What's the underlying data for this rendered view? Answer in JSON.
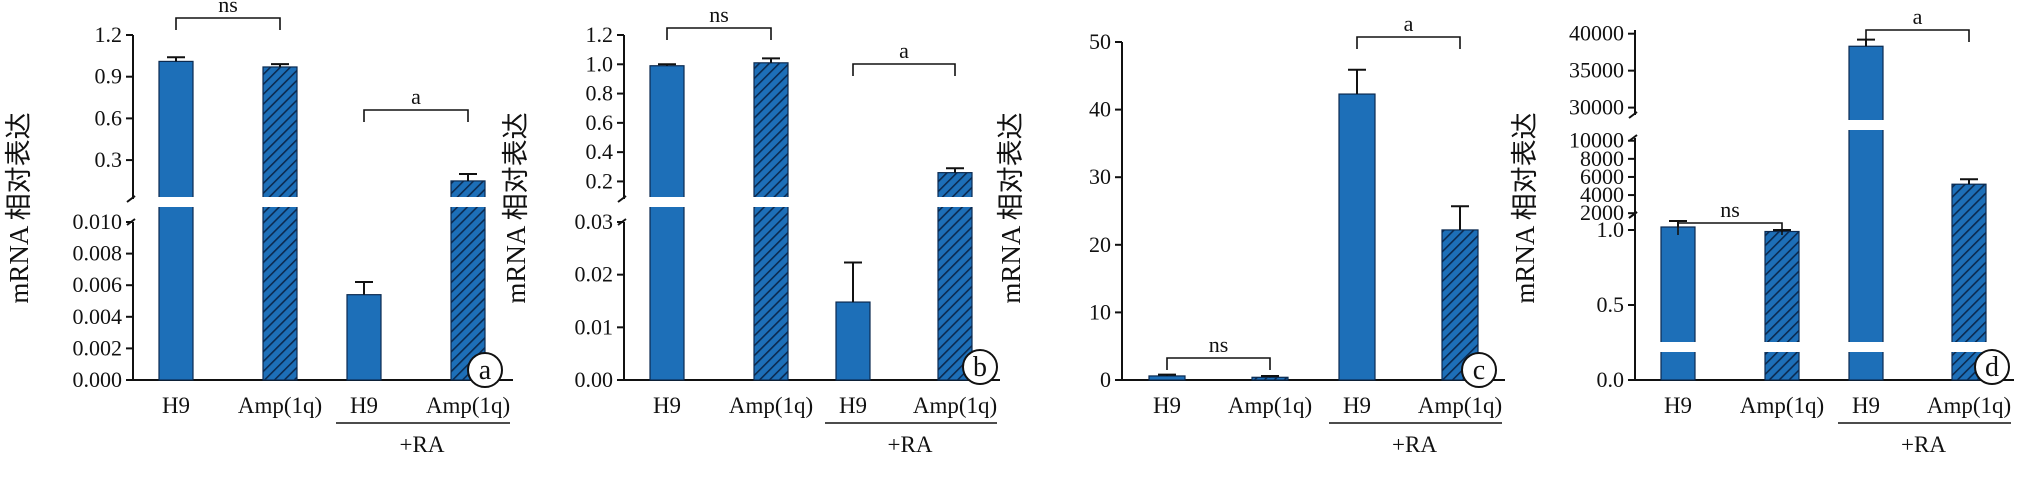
{
  "colors": {
    "bar": "#1d6fb8",
    "axis": "#111111",
    "background": "#ffffff"
  },
  "x_labels": {
    "untreated": [
      "H9",
      "Amp(1q)"
    ],
    "treated": [
      "H9",
      "Amp(1q)"
    ],
    "group": "+RA"
  },
  "y_label": "mRNA 相对表达",
  "chart_data": [
    {
      "type": "bar",
      "panel_label": "a",
      "title": "",
      "xlabel": "",
      "ylabel": "mRNA 相对表达",
      "categories": [
        "H9",
        "Amp(1q)",
        "H9",
        "Amp(1q)"
      ],
      "category_group": [
        "",
        "",
        "+RA",
        "+RA"
      ],
      "bar_hatched": [
        false,
        true,
        false,
        true
      ],
      "values": [
        1.01,
        0.97,
        0.0054,
        0.15
      ],
      "errors": [
        0.03,
        0.02,
        0.0008,
        0.05
      ],
      "broken_axis": true,
      "y_segments": [
        {
          "ylim": [
            0,
            0.01
          ],
          "ticks": [
            "0.000",
            "0.002",
            "0.004",
            "0.006",
            "0.008",
            "0.010"
          ],
          "tick_values": [
            0,
            0.002,
            0.004,
            0.006,
            0.008,
            0.01
          ]
        },
        {
          "ylim": [
            0.02,
            1.2
          ],
          "ticks": [
            "0.3",
            "0.6",
            "0.9",
            "1.2"
          ],
          "tick_values": [
            0.3,
            0.6,
            0.9,
            1.2
          ]
        }
      ],
      "significance": [
        {
          "pair": [
            0,
            1
          ],
          "label": "ns"
        },
        {
          "pair": [
            2,
            3
          ],
          "label": "a"
        }
      ]
    },
    {
      "type": "bar",
      "panel_label": "b",
      "title": "",
      "xlabel": "",
      "ylabel": "mRNA 相对表达",
      "categories": [
        "H9",
        "Amp(1q)",
        "H9",
        "Amp(1q)"
      ],
      "category_group": [
        "",
        "",
        "+RA",
        "+RA"
      ],
      "bar_hatched": [
        false,
        true,
        false,
        true
      ],
      "values": [
        0.99,
        1.01,
        0.0148,
        0.26
      ],
      "errors": [
        0.01,
        0.03,
        0.0075,
        0.03
      ],
      "broken_axis": true,
      "y_segments": [
        {
          "ylim": [
            0,
            0.03
          ],
          "ticks": [
            "0.00",
            "0.01",
            "0.02",
            "0.03"
          ],
          "tick_values": [
            0,
            0.01,
            0.02,
            0.03
          ]
        },
        {
          "ylim": [
            0.08,
            1.2
          ],
          "ticks": [
            "0.2",
            "0.4",
            "0.6",
            "0.8",
            "1.0",
            "1.2"
          ],
          "tick_values": [
            0.2,
            0.4,
            0.6,
            0.8,
            1.0,
            1.2
          ]
        }
      ],
      "significance": [
        {
          "pair": [
            0,
            1
          ],
          "label": "ns"
        },
        {
          "pair": [
            2,
            3
          ],
          "label": "a"
        }
      ]
    },
    {
      "type": "bar",
      "panel_label": "c",
      "title": "",
      "xlabel": "",
      "ylabel": "mRNA 相对表达",
      "categories": [
        "H9",
        "Amp(1q)",
        "H9",
        "Amp(1q)"
      ],
      "category_group": [
        "",
        "",
        "+RA",
        "+RA"
      ],
      "bar_hatched": [
        false,
        true,
        false,
        true
      ],
      "values": [
        0.6,
        0.4,
        42.3,
        22.2
      ],
      "errors": [
        0.2,
        0.2,
        3.6,
        3.5
      ],
      "broken_axis": false,
      "y_segments": [
        {
          "ylim": [
            0,
            50
          ],
          "ticks": [
            "0",
            "10",
            "20",
            "30",
            "40",
            "50"
          ],
          "tick_values": [
            0,
            10,
            20,
            30,
            40,
            50
          ]
        }
      ],
      "significance": [
        {
          "pair": [
            0,
            1
          ],
          "label": "ns"
        },
        {
          "pair": [
            2,
            3
          ],
          "label": "a"
        }
      ]
    },
    {
      "type": "bar",
      "panel_label": "d",
      "title": "",
      "xlabel": "",
      "ylabel": "mRNA 相对表达",
      "categories": [
        "H9",
        "Amp(1q)",
        "H9",
        "Amp(1q)"
      ],
      "category_group": [
        "",
        "",
        "+RA",
        "+RA"
      ],
      "bar_hatched": [
        false,
        true,
        false,
        true
      ],
      "values": [
        1.02,
        0.99,
        38300,
        5200
      ],
      "errors": [
        0.04,
        0.01,
        900,
        550
      ],
      "broken_axis": true,
      "y_segments": [
        {
          "ylim": [
            0,
            1.1
          ],
          "ticks": [
            "0.0",
            "0.5",
            "1.0"
          ],
          "tick_values": [
            0,
            0.5,
            1.0
          ]
        },
        {
          "ylim": [
            1800,
            10300
          ],
          "ticks": [
            "2000",
            "4000",
            "6000",
            "8000",
            "10000"
          ],
          "tick_values": [
            2000,
            4000,
            6000,
            8000,
            10000
          ]
        },
        {
          "ylim": [
            29000,
            40500
          ],
          "ticks": [
            "30000",
            "35000",
            "40000"
          ],
          "tick_values": [
            30000,
            35000,
            40000
          ]
        }
      ],
      "significance": [
        {
          "pair": [
            0,
            1
          ],
          "label": "ns"
        },
        {
          "pair": [
            2,
            3
          ],
          "label": "a"
        }
      ]
    }
  ]
}
